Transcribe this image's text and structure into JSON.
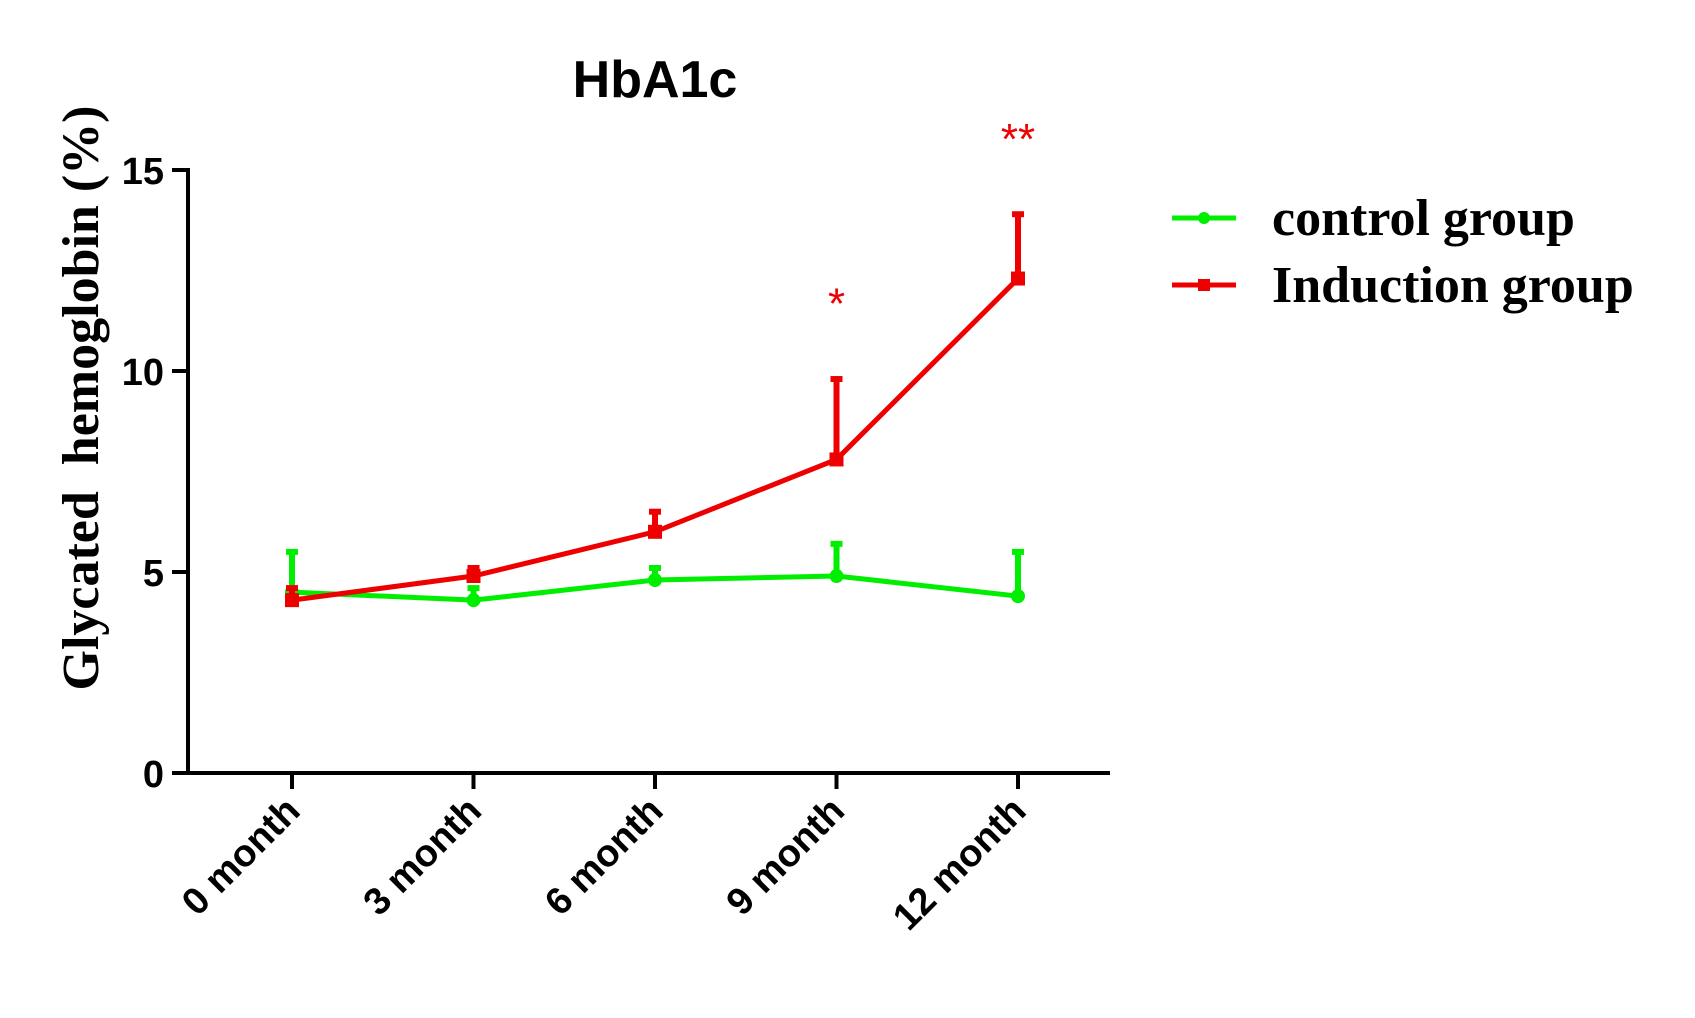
{
  "chart_data": {
    "type": "line",
    "title": "HbA1c",
    "xlabel": "",
    "ylabel": "Glycated  hemoglobin (%)",
    "categories": [
      "0 month",
      "3 month",
      "6 month",
      "9 month",
      "12 month"
    ],
    "ylim": [
      0,
      15
    ],
    "yticks": [
      0,
      5,
      10,
      15
    ],
    "grid": false,
    "legend_position": "right",
    "series": [
      {
        "name": "control group",
        "color": "#00ee00",
        "marker": "circle",
        "values": [
          4.5,
          4.3,
          4.8,
          4.9,
          4.4
        ],
        "error": [
          1.0,
          0.3,
          0.3,
          0.8,
          1.1
        ]
      },
      {
        "name": "Induction group",
        "color": "#ee0000",
        "marker": "square",
        "values": [
          4.3,
          4.9,
          6.0,
          7.8,
          12.3
        ],
        "error": [
          0.3,
          0.2,
          0.5,
          2.0,
          1.6
        ]
      }
    ],
    "annotations": [
      {
        "text": "*",
        "category": "9 month",
        "y": 11.3,
        "color": "#ee0000"
      },
      {
        "text": "**",
        "category": "12 month",
        "y": 15.4,
        "color": "#ee0000"
      }
    ]
  }
}
